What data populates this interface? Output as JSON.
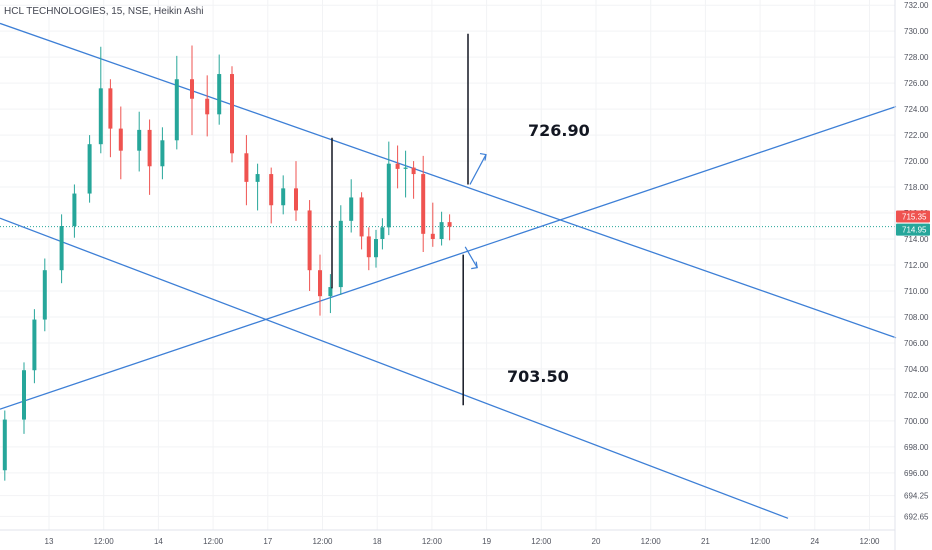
{
  "header": {
    "title": "HCL TECHNOLOGIES, 15, NSE, Heikin Ashi"
  },
  "colors": {
    "bull": "#26a69a",
    "bear": "#ef5350",
    "trendline": "#3d7fd6",
    "dotted": "#26a69a",
    "grid": "#f2f3f5",
    "text": "#50535e"
  },
  "chart_data": {
    "type": "candlestick",
    "title": "HCL TECHNOLOGIES, 15, NSE, Heikin Ashi",
    "ylim": [
      691.6,
      732.4
    ],
    "y_ticks": [
      "732.00",
      "730.00",
      "728.00",
      "726.00",
      "724.00",
      "722.00",
      "720.00",
      "718.00",
      "716.00",
      "714.00",
      "712.00",
      "710.00",
      "708.00",
      "706.00",
      "704.00",
      "702.00",
      "700.00",
      "698.00",
      "696.00",
      "694.25",
      "692.65"
    ],
    "x_ticks": [
      "13",
      "12:00",
      "14",
      "12:00",
      "17",
      "12:00",
      "18",
      "12:00",
      "19",
      "12:00",
      "20",
      "12:00",
      "21",
      "12:00",
      "24",
      "12:00"
    ],
    "last_price_labels": [
      {
        "value": "715.35",
        "color": "#ef5350"
      },
      {
        "value": "714.95",
        "color": "#26a69a"
      }
    ],
    "targets": [
      {
        "label": "726.90",
        "direction": "up",
        "value": 726.9
      },
      {
        "label": "703.50",
        "direction": "down",
        "value": 703.5
      }
    ],
    "trendlines": [
      {
        "name": "upper-descending",
        "from": [
          0.0,
          730.6
        ],
        "to": [
          112.0,
          706.4
        ]
      },
      {
        "name": "lower-descending",
        "from": [
          0.0,
          715.6
        ],
        "to": [
          98.5,
          692.5
        ]
      },
      {
        "name": "ascending-support",
        "from": [
          0.0,
          700.9
        ],
        "to": [
          112.0,
          724.2
        ]
      }
    ],
    "vertical_markers": [
      {
        "name": "pattern-height-left",
        "x": 41.5,
        "y1": 710.2,
        "y2": 721.8
      },
      {
        "name": "target-up-leg",
        "x": 58.5,
        "y1": 718.2,
        "y2": 729.8
      },
      {
        "name": "target-down-leg",
        "x": 57.9,
        "y1": 701.2,
        "y2": 712.8
      }
    ],
    "current_price": 714.95,
    "candles": [
      {
        "o": 696.2,
        "h": 700.8,
        "l": 695.4,
        "c": 700.1
      },
      {
        "o": 700.1,
        "h": 704.5,
        "l": 699.0,
        "c": 703.9
      },
      {
        "o": 703.9,
        "h": 708.6,
        "l": 702.9,
        "c": 707.8
      },
      {
        "o": 707.8,
        "h": 712.5,
        "l": 706.9,
        "c": 711.6
      },
      {
        "o": 711.6,
        "h": 715.9,
        "l": 710.6,
        "c": 715.0
      },
      {
        "o": 715.0,
        "h": 718.2,
        "l": 714.1,
        "c": 717.5
      },
      {
        "o": 717.5,
        "h": 722.0,
        "l": 716.8,
        "c": 721.3
      },
      {
        "o": 721.3,
        "h": 728.8,
        "l": 720.6,
        "c": 725.6
      },
      {
        "o": 725.6,
        "h": 726.3,
        "l": 720.3,
        "c": 722.5
      },
      {
        "o": 722.5,
        "h": 724.2,
        "l": 718.6,
        "c": 720.8
      },
      {
        "o": 720.8,
        "h": 723.8,
        "l": 719.2,
        "c": 722.4
      },
      {
        "o": 722.4,
        "h": 723.2,
        "l": 717.4,
        "c": 719.6
      },
      {
        "o": 719.6,
        "h": 722.6,
        "l": 718.6,
        "c": 721.6
      },
      {
        "o": 721.6,
        "h": 728.1,
        "l": 720.9,
        "c": 726.3
      },
      {
        "o": 726.3,
        "h": 728.9,
        "l": 722.0,
        "c": 724.8
      },
      {
        "o": 724.8,
        "h": 726.6,
        "l": 721.9,
        "c": 723.6
      },
      {
        "o": 723.6,
        "h": 728.2,
        "l": 722.8,
        "c": 726.7
      },
      {
        "o": 726.7,
        "h": 727.3,
        "l": 719.9,
        "c": 720.6
      },
      {
        "o": 720.6,
        "h": 722.0,
        "l": 716.6,
        "c": 718.4
      },
      {
        "o": 718.4,
        "h": 719.8,
        "l": 716.2,
        "c": 719.0
      },
      {
        "o": 719.0,
        "h": 719.5,
        "l": 715.2,
        "c": 716.6
      },
      {
        "o": 716.6,
        "h": 718.9,
        "l": 715.9,
        "c": 717.9
      },
      {
        "o": 717.9,
        "h": 720.0,
        "l": 715.4,
        "c": 716.2
      },
      {
        "o": 716.2,
        "h": 717.0,
        "l": 710.0,
        "c": 711.6
      },
      {
        "o": 711.6,
        "h": 712.8,
        "l": 708.1,
        "c": 709.6
      },
      {
        "o": 709.6,
        "h": 711.3,
        "l": 708.3,
        "c": 710.3
      },
      {
        "o": 710.3,
        "h": 716.6,
        "l": 709.7,
        "c": 715.4
      },
      {
        "o": 715.4,
        "h": 718.6,
        "l": 714.5,
        "c": 717.2
      },
      {
        "o": 717.2,
        "h": 717.6,
        "l": 713.2,
        "c": 714.2
      },
      {
        "o": 714.2,
        "h": 714.9,
        "l": 711.6,
        "c": 712.6
      },
      {
        "o": 712.6,
        "h": 714.7,
        "l": 711.8,
        "c": 714.0
      },
      {
        "o": 714.0,
        "h": 715.6,
        "l": 713.2,
        "c": 714.9
      },
      {
        "o": 714.9,
        "h": 721.5,
        "l": 714.3,
        "c": 719.8
      },
      {
        "o": 719.8,
        "h": 721.2,
        "l": 717.9,
        "c": 719.4
      },
      {
        "o": 719.4,
        "h": 720.8,
        "l": 717.2,
        "c": 719.5
      },
      {
        "o": 719.5,
        "h": 720.0,
        "l": 717.1,
        "c": 719.0
      },
      {
        "o": 719.0,
        "h": 720.4,
        "l": 713.0,
        "c": 714.4
      },
      {
        "o": 714.4,
        "h": 716.8,
        "l": 713.4,
        "c": 714.0
      },
      {
        "o": 714.0,
        "h": 716.1,
        "l": 713.5,
        "c": 715.3
      },
      {
        "o": 715.3,
        "h": 715.9,
        "l": 713.9,
        "c": 714.95
      }
    ],
    "candle_x": [
      0.6,
      3.0,
      4.3,
      5.6,
      7.7,
      9.3,
      11.2,
      12.6,
      13.8,
      15.1,
      17.4,
      18.7,
      20.3,
      22.1,
      24.0,
      25.9,
      27.4,
      29.0,
      30.8,
      32.2,
      33.9,
      35.4,
      37.0,
      38.7,
      40.0,
      41.3,
      42.6,
      43.9,
      45.2,
      46.1,
      47.0,
      47.8,
      48.6,
      49.7,
      50.7,
      51.7,
      52.9,
      54.1,
      55.2,
      56.2
    ]
  }
}
